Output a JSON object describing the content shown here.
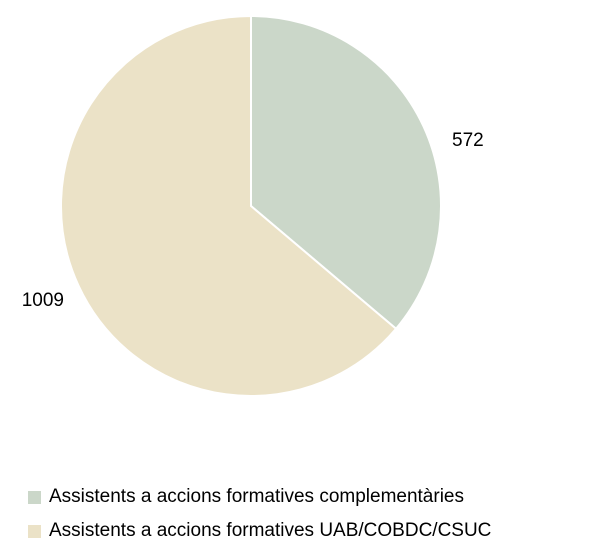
{
  "chart_data": {
    "type": "pie",
    "series": [
      {
        "name": "Assistents a accions formatives complementàries",
        "value": 572,
        "label": "572",
        "color": "#cbd7c9"
      },
      {
        "name": "Assistents a accions formatives UAB/COBDC/CSUC",
        "value": 1009,
        "label": "1009",
        "color": "#ebe2c7"
      }
    ],
    "start": "12 o'clock",
    "direction": "clockwise",
    "legend_position": "bottom-left"
  }
}
